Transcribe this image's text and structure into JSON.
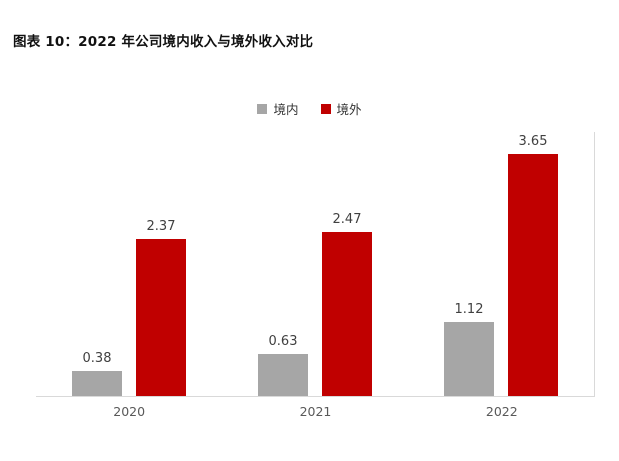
{
  "header": {
    "title": "图表 10：2022 年公司境内收入与境外收入对比"
  },
  "chart_data": {
    "type": "bar",
    "title": "图表 10：2022 年公司境内收入与境外收入对比",
    "categories": [
      "2020",
      "2021",
      "2022"
    ],
    "series": [
      {
        "name": "境内",
        "color": "#a6a6a6",
        "values": [
          0.38,
          0.63,
          1.12
        ]
      },
      {
        "name": "境外",
        "color": "#c00000",
        "values": [
          2.37,
          2.47,
          3.65
        ]
      }
    ],
    "data_labels": [
      "0.38",
      "0.63",
      "1.12",
      "2.37",
      "2.47",
      "3.65"
    ],
    "xlabel": "",
    "ylabel": "",
    "ylim": [
      0,
      4
    ],
    "grid": false,
    "legend_position": "top",
    "axis_line_color": "#d9d9d9",
    "label_color": "#404040",
    "tick_label_color": "#595959"
  }
}
